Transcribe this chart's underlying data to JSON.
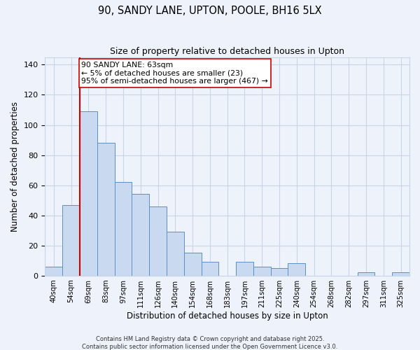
{
  "title": "90, SANDY LANE, UPTON, POOLE, BH16 5LX",
  "subtitle": "Size of property relative to detached houses in Upton",
  "xlabel": "Distribution of detached houses by size in Upton",
  "ylabel": "Number of detached properties",
  "bar_color": "#c8d9f0",
  "bar_edge_color": "#5b8fc9",
  "bins": [
    "40sqm",
    "54sqm",
    "69sqm",
    "83sqm",
    "97sqm",
    "111sqm",
    "126sqm",
    "140sqm",
    "154sqm",
    "168sqm",
    "183sqm",
    "197sqm",
    "211sqm",
    "225sqm",
    "240sqm",
    "254sqm",
    "268sqm",
    "282sqm",
    "297sqm",
    "311sqm",
    "325sqm"
  ],
  "values": [
    6,
    47,
    109,
    88,
    62,
    54,
    46,
    29,
    15,
    9,
    0,
    9,
    6,
    5,
    8,
    0,
    0,
    0,
    2,
    0,
    2
  ],
  "ylim": [
    0,
    145
  ],
  "yticks": [
    0,
    20,
    40,
    60,
    80,
    100,
    120,
    140
  ],
  "property_line_x": 1.5,
  "property_line_label": "90 SANDY LANE: 63sqm",
  "annotation_line1": "← 5% of detached houses are smaller (23)",
  "annotation_line2": "95% of semi-detached houses are larger (467) →",
  "box_color": "#ffffff",
  "line_color": "#cc0000",
  "grid_color": "#c8d4e8",
  "background_color": "#eef2fa",
  "footer1": "Contains HM Land Registry data © Crown copyright and database right 2025.",
  "footer2": "Contains public sector information licensed under the Open Government Licence v3.0."
}
